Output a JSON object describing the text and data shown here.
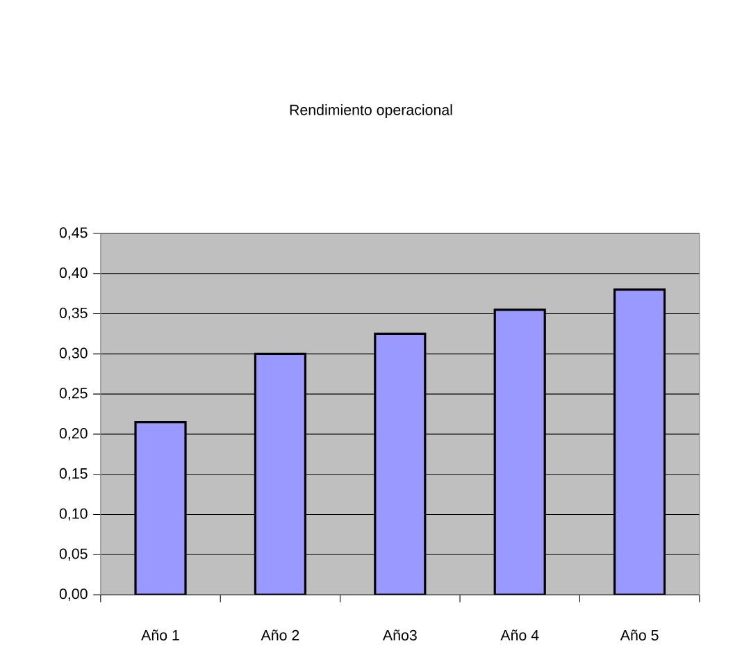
{
  "chart_data": {
    "type": "bar",
    "title": "Rendimiento operacional",
    "categories": [
      "Año 1",
      "Año 2",
      "Año3",
      "Año 4",
      "Año 5"
    ],
    "values": [
      0.215,
      0.3,
      0.325,
      0.355,
      0.38
    ],
    "color": "#9999ff",
    "ylim": [
      0,
      0.45
    ],
    "yticks": [
      {
        "value": 0,
        "label": "0,00"
      },
      {
        "value": 0.05,
        "label": "0,05"
      },
      {
        "value": 0.1,
        "label": "0,10"
      },
      {
        "value": 0.15,
        "label": "0,15"
      },
      {
        "value": 0.2,
        "label": "0,20"
      },
      {
        "value": 0.25,
        "label": "0,25"
      },
      {
        "value": 0.3,
        "label": "0,30"
      },
      {
        "value": 0.35,
        "label": "0,35"
      },
      {
        "value": 0.4,
        "label": "0,40"
      },
      {
        "value": 0.45,
        "label": "0,45"
      }
    ],
    "grid": "y"
  }
}
